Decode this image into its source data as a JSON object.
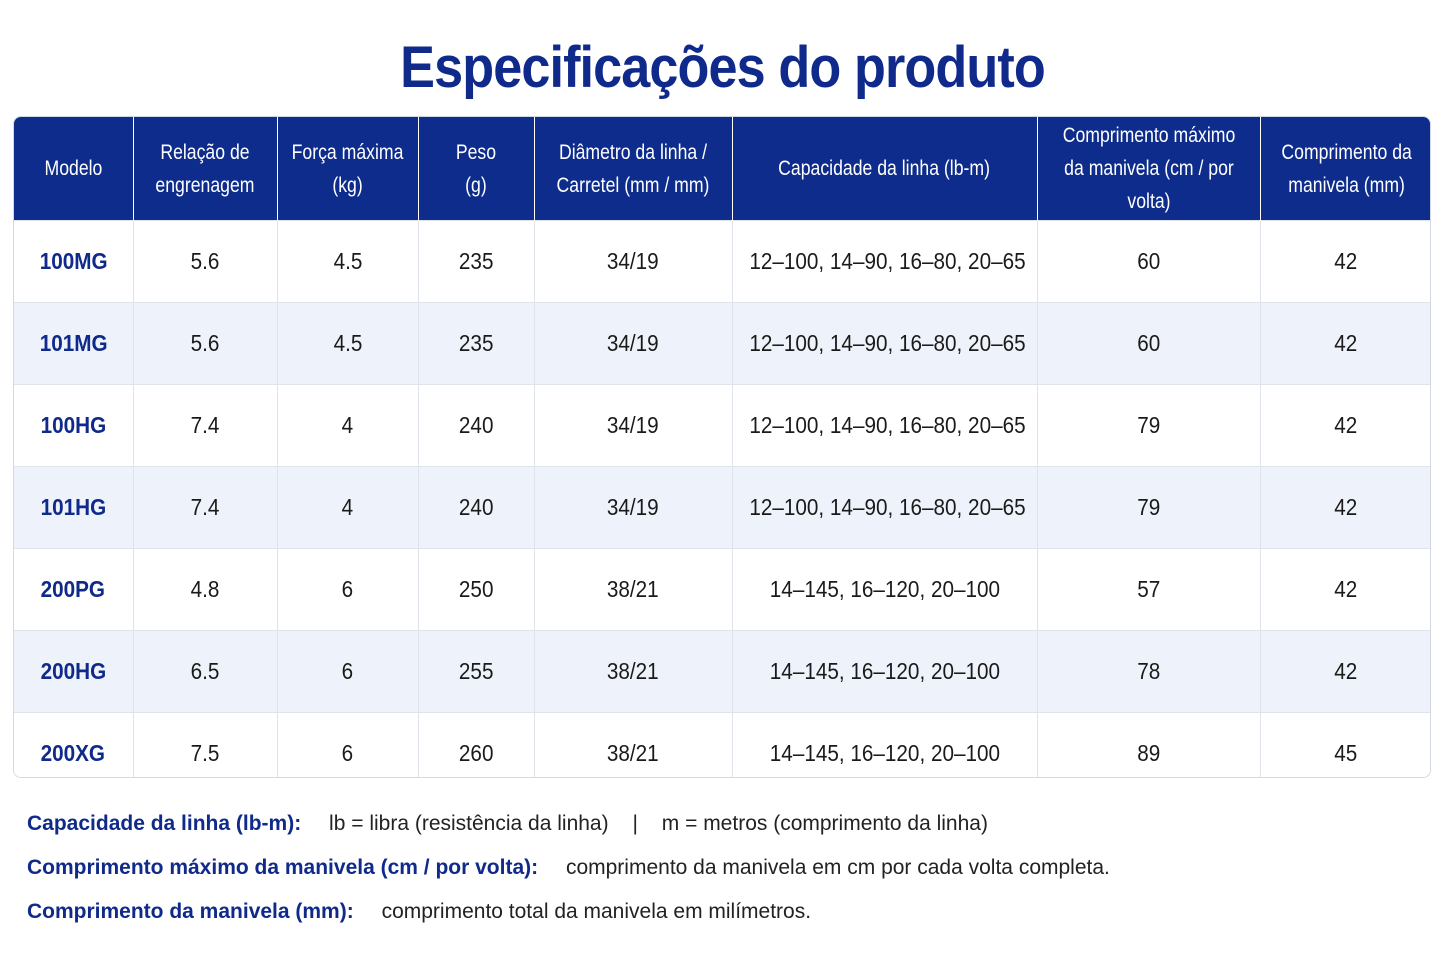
{
  "title": "Especificações do produto",
  "table": {
    "headers": [
      "Modelo",
      "Relação de\nengrenagem",
      "Força máxima\n(kg)",
      "Peso\n(g)",
      "Diâmetro da linha /\nCarretel (mm / mm)",
      "Capacidade da linha (lb-m)",
      "Comprimento máximo\nda manivela (cm / por volta)",
      "Comprimento da\nmanivela (mm)"
    ],
    "rows": [
      [
        "100MG",
        "5.6",
        "4.5",
        "235",
        "34/19",
        "12–100, 14–90, 16–80, 20–65",
        "60",
        "42"
      ],
      [
        "101MG",
        "5.6",
        "4.5",
        "235",
        "34/19",
        "12–100, 14–90, 16–80, 20–65",
        "60",
        "42"
      ],
      [
        "100HG",
        "7.4",
        "4",
        "240",
        "34/19",
        "12–100, 14–90, 16–80, 20–65",
        "79",
        "42"
      ],
      [
        "101HG",
        "7.4",
        "4",
        "240",
        "34/19",
        "12–100, 14–90, 16–80, 20–65",
        "79",
        "42"
      ],
      [
        "200PG",
        "4.8",
        "6",
        "250",
        "38/21",
        "14–145, 16–120, 20–100",
        "57",
        "42"
      ],
      [
        "200HG",
        "6.5",
        "6",
        "255",
        "38/21",
        "14–145, 16–120, 20–100",
        "78",
        "42"
      ],
      [
        "200XG",
        "7.5",
        "6",
        "260",
        "38/21",
        "14–145, 16–120, 20–100",
        "89",
        "45"
      ]
    ]
  },
  "notes": {
    "line_capacity": {
      "label": "Capacidade da linha (lb-m):",
      "part1": "lb = libra (resistência da linha)",
      "separator": "|",
      "part2": "m = metros (comprimento da linha)"
    },
    "max_handle": {
      "label": "Comprimento máximo da manivela (cm / por volta):",
      "text": "comprimento da manivela em cm por cada volta completa."
    },
    "handle_length": {
      "label": "Comprimento da manivela (mm):",
      "text": "comprimento total da manivela em milímetros."
    }
  },
  "colors": {
    "accent": "#0f2a8a",
    "header_bg": "#0d2c8c",
    "row_alt": "#eef3fb"
  }
}
